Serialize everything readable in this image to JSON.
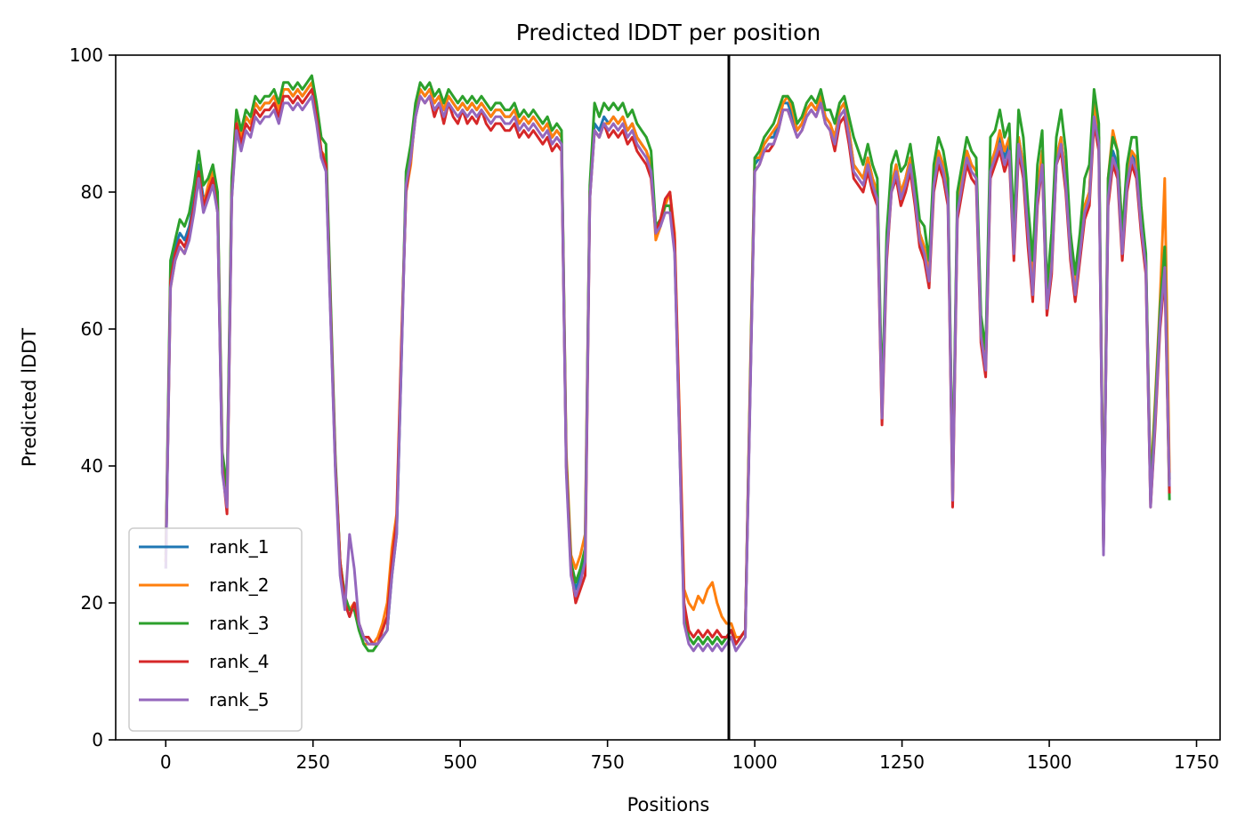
{
  "chart_data": {
    "type": "line",
    "title": "Predicted lDDT per position",
    "xlabel": "Positions",
    "ylabel": "Predicted lDDT",
    "xlim": [
      -85,
      1790
    ],
    "ylim": [
      0,
      100
    ],
    "xticks": [
      "0",
      "250",
      "500",
      "750",
      "1000",
      "1250",
      "1500",
      "1750"
    ],
    "yticks": [
      "0",
      "20",
      "40",
      "60",
      "80",
      "100"
    ],
    "vline_x": 956,
    "grid": false,
    "legend_placement": "lower-left",
    "x": [
      0,
      8,
      16,
      24,
      32,
      40,
      48,
      56,
      64,
      72,
      80,
      88,
      96,
      104,
      112,
      120,
      128,
      136,
      144,
      152,
      160,
      168,
      176,
      184,
      192,
      200,
      208,
      216,
      224,
      232,
      240,
      248,
      256,
      264,
      272,
      280,
      288,
      296,
      304,
      312,
      320,
      328,
      336,
      344,
      352,
      360,
      368,
      376,
      384,
      392,
      400,
      408,
      416,
      424,
      432,
      440,
      448,
      456,
      464,
      472,
      480,
      488,
      496,
      504,
      512,
      520,
      528,
      536,
      544,
      552,
      560,
      568,
      576,
      584,
      592,
      600,
      608,
      616,
      624,
      632,
      640,
      648,
      656,
      664,
      672,
      680,
      688,
      696,
      704,
      712,
      720,
      728,
      736,
      744,
      752,
      760,
      768,
      776,
      784,
      792,
      800,
      808,
      816,
      824,
      832,
      840,
      848,
      856,
      864,
      872,
      880,
      888,
      896,
      904,
      912,
      920,
      928,
      936,
      944,
      952,
      960,
      968,
      976,
      984,
      992,
      1000,
      1008,
      1016,
      1024,
      1032,
      1040,
      1048,
      1056,
      1064,
      1072,
      1080,
      1088,
      1096,
      1104,
      1112,
      1120,
      1128,
      1136,
      1144,
      1152,
      1160,
      1168,
      1176,
      1184,
      1192,
      1200,
      1208,
      1216,
      1224,
      1232,
      1240,
      1248,
      1256,
      1264,
      1272,
      1280,
      1288,
      1296,
      1304,
      1312,
      1320,
      1328,
      1336,
      1344,
      1352,
      1360,
      1368,
      1376,
      1384,
      1392,
      1400,
      1408,
      1416,
      1424,
      1432,
      1440,
      1448,
      1456,
      1464,
      1472,
      1480,
      1488,
      1496,
      1504,
      1512,
      1520,
      1528,
      1536,
      1544,
      1552,
      1560,
      1568,
      1576,
      1584,
      1592,
      1600,
      1608,
      1616,
      1624,
      1632,
      1640,
      1648,
      1656,
      1664,
      1672,
      1680,
      1688,
      1696,
      1704
    ],
    "series": [
      {
        "name": "rank_1",
        "color": "#1f77b4",
        "values": [
          25,
          68,
          72,
          74,
          73,
          75,
          79,
          84,
          79,
          80,
          82,
          78,
          40,
          35,
          80,
          90,
          88,
          91,
          90,
          93,
          92,
          93,
          93,
          94,
          92,
          95,
          95,
          94,
          95,
          94,
          95,
          96,
          92,
          85,
          84,
          62,
          40,
          25,
          20,
          18,
          20,
          17,
          15,
          15,
          14,
          14,
          15,
          16,
          24,
          30,
          55,
          82,
          86,
          92,
          95,
          94,
          95,
          93,
          94,
          92,
          94,
          93,
          92,
          93,
          92,
          93,
          92,
          93,
          92,
          91,
          92,
          92,
          91,
          91,
          92,
          90,
          91,
          90,
          91,
          90,
          89,
          90,
          88,
          89,
          88,
          40,
          25,
          22,
          24,
          27,
          80,
          90,
          89,
          91,
          90,
          91,
          90,
          91,
          89,
          90,
          88,
          87,
          86,
          84,
          75,
          76,
          78,
          78,
          72,
          45,
          18,
          15,
          14,
          15,
          14,
          15,
          14,
          15,
          14,
          15,
          16,
          14,
          15,
          16,
          50,
          84,
          85,
          87,
          88,
          88,
          90,
          93,
          93,
          91,
          89,
          90,
          92,
          93,
          92,
          94,
          91,
          90,
          88,
          92,
          93,
          89,
          84,
          83,
          82,
          85,
          82,
          80,
          48,
          72,
          81,
          84,
          80,
          82,
          85,
          80,
          74,
          72,
          68,
          82,
          86,
          84,
          80,
          36,
          78,
          82,
          86,
          84,
          83,
          60,
          55,
          84,
          86,
          88,
          85,
          87,
          72,
          88,
          84,
          75,
          66,
          80,
          85,
          64,
          70,
          85,
          88,
          82,
          72,
          66,
          72,
          78,
          80,
          92,
          88,
          28,
          80,
          86,
          84,
          72,
          82,
          86,
          84,
          76,
          70,
          35,
          48,
          62,
          70,
          38
        ]
      },
      {
        "name": "rank_2",
        "color": "#ff7f0e",
        "values": [
          26,
          66,
          70,
          72,
          71,
          74,
          78,
          83,
          78,
          81,
          83,
          79,
          41,
          36,
          81,
          91,
          88,
          91,
          90,
          93,
          92,
          93,
          93,
          94,
          92,
          95,
          95,
          94,
          95,
          94,
          95,
          96,
          92,
          86,
          85,
          63,
          40,
          26,
          21,
          19,
          20,
          17,
          14,
          14,
          14,
          15,
          17,
          20,
          28,
          33,
          58,
          80,
          84,
          92,
          95,
          94,
          95,
          93,
          94,
          92,
          94,
          93,
          92,
          93,
          92,
          93,
          92,
          93,
          92,
          91,
          92,
          92,
          91,
          91,
          92,
          90,
          91,
          90,
          91,
          90,
          89,
          90,
          88,
          89,
          88,
          42,
          27,
          25,
          27,
          30,
          80,
          89,
          88,
          90,
          90,
          91,
          90,
          91,
          89,
          90,
          88,
          87,
          86,
          84,
          73,
          75,
          78,
          80,
          74,
          48,
          22,
          20,
          19,
          21,
          20,
          22,
          23,
          20,
          18,
          17,
          17,
          15,
          15,
          16,
          52,
          85,
          85,
          87,
          88,
          89,
          90,
          93,
          94,
          92,
          89,
          90,
          92,
          93,
          92,
          94,
          91,
          90,
          88,
          92,
          93,
          89,
          84,
          83,
          82,
          85,
          82,
          80,
          48,
          72,
          81,
          84,
          80,
          82,
          85,
          80,
          74,
          72,
          68,
          82,
          86,
          84,
          80,
          36,
          78,
          82,
          86,
          84,
          83,
          60,
          55,
          84,
          86,
          89,
          86,
          88,
          73,
          88,
          84,
          76,
          67,
          80,
          86,
          64,
          71,
          85,
          88,
          82,
          73,
          66,
          72,
          78,
          80,
          93,
          88,
          29,
          82,
          89,
          86,
          74,
          83,
          86,
          85,
          77,
          70,
          37,
          50,
          64,
          82,
          39
        ]
      },
      {
        "name": "rank_3",
        "color": "#2ca02c",
        "values": [
          27,
          70,
          73,
          76,
          75,
          77,
          81,
          86,
          81,
          82,
          84,
          80,
          42,
          37,
          82,
          92,
          89,
          92,
          91,
          94,
          93,
          94,
          94,
          95,
          93,
          96,
          96,
          95,
          96,
          95,
          96,
          97,
          93,
          88,
          87,
          64,
          41,
          26,
          21,
          19,
          19,
          16,
          14,
          13,
          13,
          14,
          15,
          16,
          25,
          31,
          56,
          83,
          87,
          93,
          96,
          95,
          96,
          94,
          95,
          93,
          95,
          94,
          93,
          94,
          93,
          94,
          93,
          94,
          93,
          92,
          93,
          93,
          92,
          92,
          93,
          91,
          92,
          91,
          92,
          91,
          90,
          91,
          89,
          90,
          89,
          41,
          26,
          23,
          25,
          28,
          81,
          93,
          91,
          93,
          92,
          93,
          92,
          93,
          91,
          92,
          90,
          89,
          88,
          86,
          75,
          76,
          78,
          78,
          72,
          45,
          18,
          15,
          14,
          15,
          14,
          15,
          14,
          15,
          14,
          15,
          16,
          14,
          15,
          16,
          51,
          85,
          86,
          88,
          89,
          90,
          92,
          94,
          94,
          93,
          90,
          91,
          93,
          94,
          93,
          95,
          92,
          92,
          90,
          93,
          94,
          91,
          88,
          86,
          84,
          87,
          84,
          82,
          50,
          74,
          84,
          86,
          83,
          84,
          87,
          82,
          76,
          75,
          70,
          84,
          88,
          86,
          82,
          37,
          80,
          84,
          88,
          86,
          85,
          62,
          57,
          88,
          89,
          92,
          88,
          90,
          75,
          92,
          88,
          78,
          70,
          84,
          89,
          66,
          74,
          88,
          92,
          86,
          74,
          68,
          74,
          82,
          84,
          95,
          90,
          29,
          82,
          88,
          86,
          74,
          84,
          88,
          88,
          78,
          71,
          36,
          49,
          63,
          72,
          35
        ]
      },
      {
        "name": "rank_4",
        "color": "#d62728",
        "values": [
          26,
          67,
          71,
          73,
          72,
          74,
          78,
          83,
          78,
          80,
          82,
          77,
          40,
          33,
          79,
          90,
          87,
          90,
          89,
          92,
          91,
          92,
          92,
          93,
          91,
          94,
          94,
          93,
          94,
          93,
          94,
          95,
          91,
          86,
          84,
          62,
          40,
          26,
          20,
          18,
          20,
          17,
          15,
          15,
          14,
          14,
          16,
          18,
          26,
          32,
          57,
          80,
          85,
          91,
          94,
          93,
          94,
          91,
          93,
          90,
          93,
          91,
          90,
          92,
          90,
          91,
          90,
          92,
          90,
          89,
          90,
          90,
          89,
          89,
          90,
          88,
          89,
          88,
          89,
          88,
          87,
          88,
          86,
          87,
          86,
          40,
          25,
          20,
          22,
          24,
          79,
          89,
          88,
          90,
          88,
          89,
          88,
          89,
          87,
          88,
          86,
          85,
          84,
          82,
          74,
          76,
          79,
          80,
          73,
          47,
          20,
          16,
          15,
          16,
          15,
          16,
          15,
          16,
          15,
          15,
          16,
          14,
          15,
          16,
          50,
          83,
          84,
          86,
          86,
          87,
          89,
          92,
          92,
          90,
          88,
          89,
          91,
          92,
          91,
          93,
          90,
          89,
          86,
          90,
          91,
          87,
          82,
          81,
          80,
          83,
          80,
          78,
          46,
          70,
          80,
          82,
          78,
          80,
          83,
          78,
          72,
          70,
          66,
          80,
          84,
          82,
          78,
          34,
          76,
          80,
          84,
          82,
          81,
          58,
          53,
          82,
          84,
          86,
          83,
          85,
          70,
          86,
          82,
          72,
          64,
          78,
          84,
          62,
          68,
          84,
          86,
          80,
          70,
          64,
          70,
          76,
          78,
          90,
          86,
          28,
          78,
          84,
          82,
          70,
          80,
          84,
          82,
          74,
          68,
          34,
          46,
          60,
          68,
          36
        ]
      },
      {
        "name": "rank_5",
        "color": "#9467bd",
        "values": [
          25,
          66,
          70,
          72,
          71,
          73,
          77,
          82,
          77,
          79,
          81,
          77,
          39,
          34,
          79,
          89,
          86,
          89,
          88,
          91,
          90,
          91,
          91,
          92,
          90,
          93,
          93,
          92,
          93,
          92,
          93,
          94,
          90,
          85,
          83,
          61,
          39,
          24,
          19,
          30,
          25,
          17,
          15,
          14,
          14,
          14,
          15,
          16,
          24,
          30,
          55,
          81,
          85,
          91,
          94,
          93,
          94,
          92,
          93,
          91,
          93,
          92,
          91,
          92,
          91,
          92,
          91,
          92,
          91,
          90,
          91,
          91,
          90,
          90,
          91,
          89,
          90,
          89,
          90,
          89,
          88,
          89,
          87,
          88,
          87,
          39,
          24,
          21,
          23,
          26,
          79,
          89,
          88,
          90,
          89,
          90,
          89,
          90,
          88,
          89,
          87,
          86,
          85,
          83,
          74,
          75,
          77,
          77,
          71,
          44,
          17,
          14,
          13,
          14,
          13,
          14,
          13,
          14,
          13,
          14,
          15,
          13,
          14,
          15,
          49,
          83,
          84,
          86,
          87,
          87,
          89,
          92,
          92,
          90,
          88,
          89,
          91,
          92,
          91,
          93,
          90,
          89,
          87,
          91,
          92,
          88,
          83,
          82,
          81,
          84,
          81,
          79,
          47,
          71,
          80,
          83,
          79,
          81,
          84,
          79,
          73,
          71,
          67,
          81,
          85,
          83,
          79,
          35,
          77,
          81,
          85,
          83,
          82,
          59,
          54,
          83,
          85,
          87,
          84,
          86,
          71,
          87,
          83,
          74,
          65,
          79,
          84,
          63,
          69,
          84,
          87,
          81,
          71,
          65,
          71,
          77,
          79,
          91,
          87,
          27,
          79,
          85,
          83,
          71,
          81,
          85,
          83,
          75,
          69,
          34,
          47,
          61,
          69,
          37
        ]
      }
    ]
  }
}
